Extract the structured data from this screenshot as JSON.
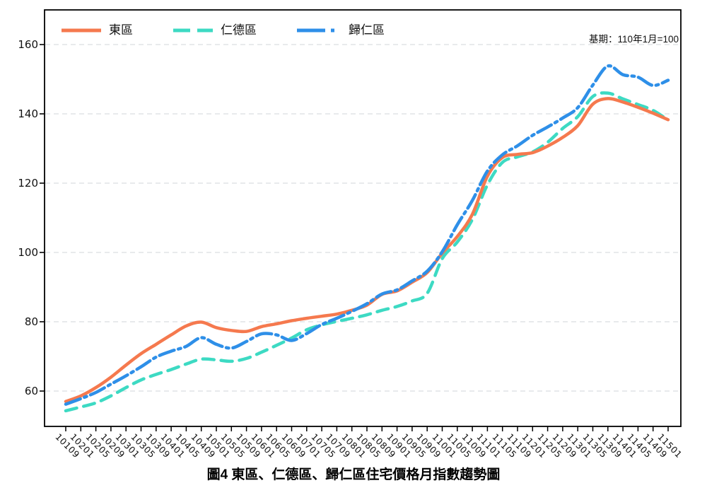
{
  "title": "圖4 東區、仁德區、歸仁區住宅價格月指數趨勢圖",
  "note": "基期：110年1月=100",
  "legend": {
    "items": [
      {
        "label": "東區",
        "color": "#F5794E",
        "pattern": "solid"
      },
      {
        "label": "仁德區",
        "color": "#3DDAC3",
        "pattern": "dashed"
      },
      {
        "label": "歸仁區",
        "color": "#2E8FE8",
        "pattern": "dash-dot"
      }
    ]
  },
  "chart_data": {
    "type": "line",
    "title": "圖4 東區、仁德區、歸仁區住宅價格月指數趨勢圖",
    "annotation": "基期：110年1月=100",
    "x_labels": [
      "10109",
      "10201",
      "10205",
      "10209",
      "10301",
      "10305",
      "10309",
      "10401",
      "10405",
      "10409",
      "10501",
      "10505",
      "10509",
      "10601",
      "10605",
      "10609",
      "10701",
      "10705",
      "10709",
      "10801",
      "10805",
      "10809",
      "10901",
      "10905",
      "10909",
      "11001",
      "11005",
      "11009",
      "11101",
      "11105",
      "11109",
      "11201",
      "11205",
      "11209",
      "11301",
      "11305",
      "11309",
      "11401",
      "11405",
      "11409",
      "11501"
    ],
    "y_ticks": [
      60,
      80,
      100,
      120,
      140,
      160
    ],
    "ylim": [
      50,
      166
    ],
    "grid": "horizontal-dashed",
    "legend_position": "top-left-inside",
    "series": [
      {
        "name": "東區",
        "color": "#F5794E",
        "style": "solid",
        "values": [
          57.0,
          58.6,
          61.0,
          64.0,
          67.5,
          70.8,
          73.5,
          76.2,
          78.8,
          79.9,
          78.3,
          77.5,
          77.2,
          78.6,
          79.4,
          80.3,
          81.0,
          81.6,
          82.2,
          83.3,
          84.8,
          87.9,
          88.9,
          91.4,
          94.2,
          99.8,
          104.6,
          111.0,
          122.0,
          127.4,
          128.3,
          128.8,
          130.7,
          133.2,
          136.6,
          142.8,
          144.4,
          143.4,
          141.9,
          140.2,
          138.3
        ]
      },
      {
        "name": "仁德區",
        "color": "#3DDAC3",
        "style": "dashed",
        "values": [
          54.3,
          55.4,
          56.6,
          58.6,
          61.0,
          63.2,
          64.8,
          66.2,
          67.8,
          69.2,
          69.0,
          68.6,
          69.4,
          71.2,
          73.2,
          75.3,
          77.7,
          79.1,
          80.1,
          81.0,
          82.0,
          83.3,
          84.4,
          86.0,
          88.2,
          98.2,
          103.0,
          109.5,
          119.5,
          126.0,
          127.6,
          129.0,
          131.8,
          135.8,
          139.2,
          145.0,
          146.0,
          144.3,
          142.7,
          141.0,
          138.2
        ]
      },
      {
        "name": "歸仁區",
        "color": "#2E8FE8",
        "style": "dash-dot",
        "values": [
          56.2,
          57.8,
          59.6,
          62.0,
          64.4,
          67.0,
          69.8,
          71.5,
          72.9,
          75.4,
          73.5,
          72.4,
          74.3,
          76.5,
          76.2,
          74.6,
          76.6,
          79.2,
          81.0,
          83.0,
          85.2,
          88.0,
          89.2,
          91.8,
          94.6,
          100.2,
          108.0,
          115.0,
          123.5,
          128.2,
          130.8,
          133.8,
          136.2,
          138.8,
          141.8,
          148.3,
          153.8,
          151.3,
          150.6,
          148.2,
          149.7
        ]
      }
    ]
  }
}
